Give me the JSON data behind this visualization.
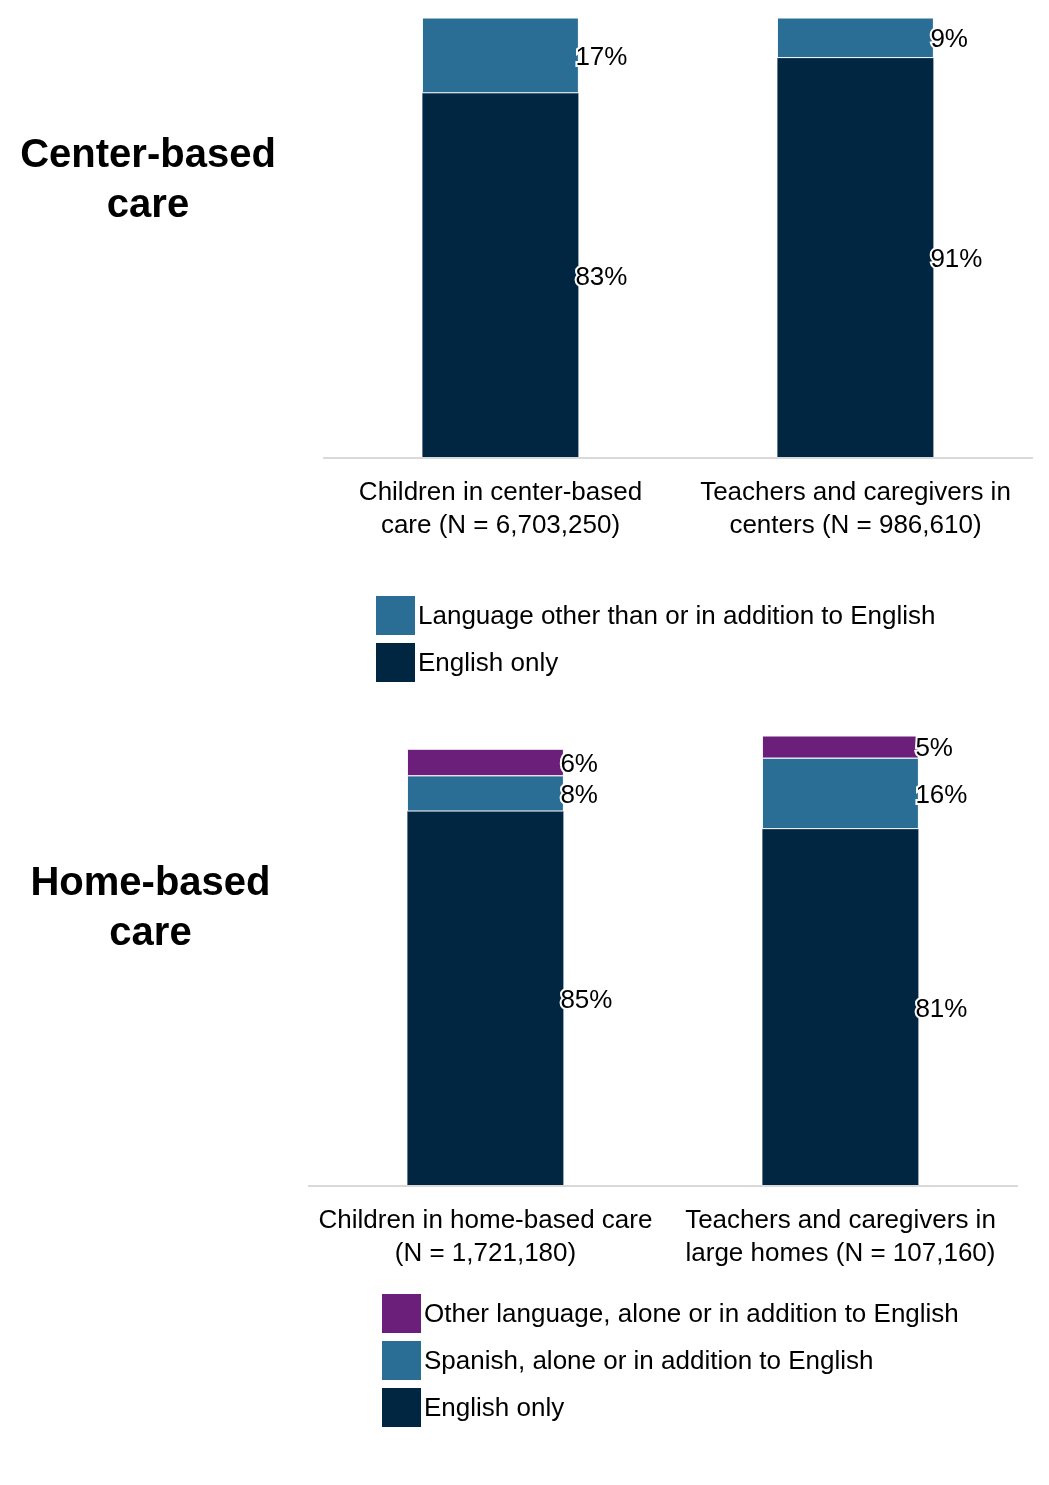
{
  "chart_data": [
    {
      "type": "bar",
      "title": "Center-based care",
      "categories": [
        "Children in center-based care (N = 6,703,250)",
        "Teachers and caregivers in centers (N = 986,610)"
      ],
      "stacked": true,
      "legend": "bottom",
      "series": [
        {
          "name": "English only",
          "color": "#002642",
          "values": [
            83,
            91
          ],
          "value_labels": [
            "83%",
            "91%"
          ]
        },
        {
          "name": "Language other than or in addition to English",
          "color": "#2a6e96",
          "values": [
            17,
            9
          ],
          "value_labels": [
            "17%",
            "9%"
          ]
        }
      ]
    },
    {
      "type": "bar",
      "title": "Home-based care",
      "categories": [
        "Children in home-based care (N = 1,721,180)",
        "Teachers and caregivers in large homes (N = 107,160)"
      ],
      "stacked": true,
      "legend": "bottom",
      "series": [
        {
          "name": "English only",
          "color": "#002642",
          "values": [
            85,
            81
          ],
          "value_labels": [
            "85%",
            "81%"
          ]
        },
        {
          "name": "Spanish, alone or in addition to English",
          "color": "#2a6e96",
          "values": [
            8,
            16
          ],
          "value_labels": [
            "8%",
            "16%"
          ]
        },
        {
          "name": "Other language, alone or in addition to English",
          "color": "#6c1f7a",
          "values": [
            6,
            5
          ],
          "value_labels": [
            "6%",
            "5%"
          ]
        }
      ]
    }
  ]
}
